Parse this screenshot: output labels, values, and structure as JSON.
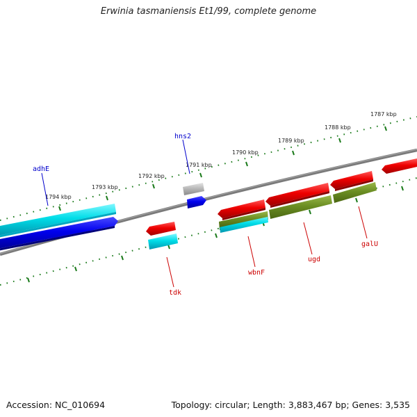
{
  "title": "Erwinia tasmaniensis Et1/99, complete genome",
  "footer": {
    "accession": "Accession: NC_010694",
    "topology": "Topology: circular; Length: 3,883,467 bp; Genes: 3,535"
  },
  "ruler": {
    "labels": [
      "1787 kbp",
      "1788 kbp",
      "1789 kbp",
      "1790 kbp",
      "1791 kbp",
      "1792 kbp",
      "1793 kbp",
      "1794 kbp"
    ]
  },
  "genes": [
    {
      "name": "adhE",
      "strand": "upper",
      "color": "#0000bb"
    },
    {
      "name": "hns2",
      "strand": "upper",
      "color": "#0000bb"
    },
    {
      "name": "tdk",
      "strand": "lower",
      "color": "#cc0000"
    },
    {
      "name": "wbnF",
      "strand": "lower",
      "color": "#cc0000"
    },
    {
      "name": "ugd",
      "strand": "lower",
      "color": "#cc0000"
    },
    {
      "name": "galU",
      "strand": "lower",
      "color": "#cc0000"
    }
  ],
  "colors": {
    "backbone": "#808080",
    "ticks": "#1a7a1a",
    "cds_forward": "#0000ee",
    "rna_cyan": "#00d8e8",
    "cds_reverse": "#ee0000",
    "olive": "#6b8e23",
    "pseudo_grey": "#b0b0b0"
  }
}
